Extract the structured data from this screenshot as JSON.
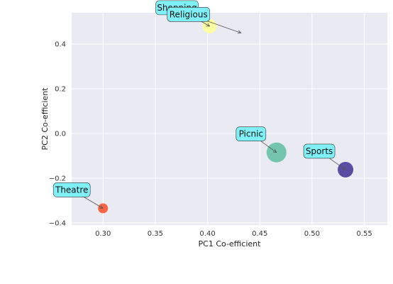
{
  "chart_data": {
    "type": "scatter",
    "xlabel": "PC1 Co-efficient",
    "ylabel": "PC2 Co-efficient",
    "xlim": [
      0.27,
      0.572
    ],
    "ylim": [
      -0.41,
      0.54
    ],
    "xticks": [
      0.3,
      0.35,
      0.4,
      0.45,
      0.5,
      0.55
    ],
    "xtick_labels": [
      "0.30",
      "0.35",
      "0.40",
      "0.45",
      "0.50",
      "0.55"
    ],
    "yticks": [
      0.4,
      0.2,
      0.0,
      -0.2,
      -0.4
    ],
    "ytick_labels": [
      "0.4",
      "0.2",
      "0.0",
      "−0.2",
      "−0.4"
    ],
    "grid": true,
    "background_color": "#eaeaf2",
    "annotation_box_color": "#7ff1f6",
    "points": [
      {
        "label": "Shopping",
        "x": 0.402,
        "y": 0.48,
        "size": 10,
        "color": "#ffff99"
      },
      {
        "label": "Religious",
        "x": 0.432,
        "y": 0.45,
        "size": 0,
        "color": "#d8f0a0"
      },
      {
        "label": "Picnic",
        "x": 0.466,
        "y": -0.085,
        "size": 14,
        "color": "#66c2a5"
      },
      {
        "label": "Sports",
        "x": 0.532,
        "y": -0.162,
        "size": 11,
        "color": "#4a3a9a"
      },
      {
        "label": "Theatre",
        "x": 0.3,
        "y": -0.335,
        "size": 7,
        "color": "#ff5533"
      }
    ]
  }
}
